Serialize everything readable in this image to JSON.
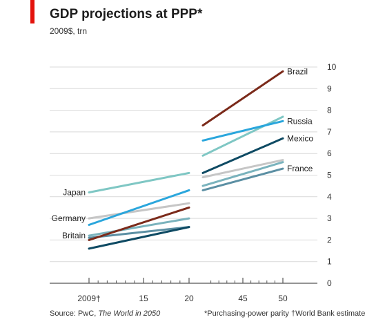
{
  "header": {
    "title": "GDP projections at PPP*",
    "subtitle": "2009$, trn"
  },
  "footer": {
    "source_prefix": "Source: PwC, ",
    "source_title": "The World in 2050",
    "footnote_ppp": "*Purchasing-power parity",
    "footnote_wb": "†World Bank estimate"
  },
  "colors": {
    "accent": "#e3120b",
    "grid": "#d9d9d9",
    "axis": "#555555"
  },
  "chart_data": {
    "type": "line",
    "title": "GDP projections at PPP*",
    "subtitle": "2009$, trn",
    "xlabel": "",
    "ylabel": "",
    "ylim": [
      0,
      10
    ],
    "yticks": [
      0,
      1,
      2,
      3,
      4,
      5,
      6,
      7,
      8,
      9,
      10
    ],
    "xlim": [
      2009,
      2050
    ],
    "xbreak": [
      2020,
      2040
    ],
    "xticks": [
      {
        "value": 2009,
        "label": "2009†"
      },
      {
        "value": 2015,
        "label": "15"
      },
      {
        "value": 2020,
        "label": "20"
      },
      {
        "value": 2045,
        "label": "45"
      },
      {
        "value": 2050,
        "label": "50"
      }
    ],
    "grid": true,
    "series": [
      {
        "name": "Japan",
        "color": "#7fc7c4",
        "labelSide": "left",
        "segments": [
          [
            [
              2009,
              4.2
            ],
            [
              2020,
              5.1
            ]
          ],
          [
            [
              2040,
              5.9
            ],
            [
              2050,
              7.7
            ]
          ]
        ]
      },
      {
        "name": "Germany",
        "color": "#c6c6c6",
        "labelSide": "left",
        "segments": [
          [
            [
              2009,
              3.0
            ],
            [
              2020,
              3.7
            ]
          ],
          [
            [
              2040,
              4.9
            ],
            [
              2050,
              5.7
            ]
          ]
        ]
      },
      {
        "name": "Britain",
        "color": "#7ab3bd",
        "labelSide": "left",
        "segments": [
          [
            [
              2009,
              2.2
            ],
            [
              2020,
              3.0
            ]
          ],
          [
            [
              2040,
              4.5
            ],
            [
              2050,
              5.6
            ]
          ]
        ]
      },
      {
        "name": "France",
        "color": "#5b8fa3",
        "labelSide": "right",
        "segments": [
          [
            [
              2009,
              2.1
            ],
            [
              2020,
              2.6
            ]
          ],
          [
            [
              2040,
              4.3
            ],
            [
              2050,
              5.3
            ]
          ]
        ]
      },
      {
        "name": "Brazil",
        "color": "#7b2a1a",
        "labelSide": "right",
        "segments": [
          [
            [
              2009,
              2.0
            ],
            [
              2020,
              3.5
            ]
          ],
          [
            [
              2040,
              7.3
            ],
            [
              2050,
              9.8
            ]
          ]
        ]
      },
      {
        "name": "Russia",
        "color": "#2aa6dc",
        "labelSide": "right",
        "segments": [
          [
            [
              2009,
              2.7
            ],
            [
              2020,
              4.3
            ]
          ],
          [
            [
              2040,
              6.6
            ],
            [
              2050,
              7.5
            ]
          ]
        ]
      },
      {
        "name": "Mexico",
        "color": "#0e4a63",
        "labelSide": "right",
        "segments": [
          [
            [
              2009,
              1.6
            ],
            [
              2020,
              2.6
            ]
          ],
          [
            [
              2040,
              5.1
            ],
            [
              2050,
              6.7
            ]
          ]
        ]
      }
    ]
  }
}
